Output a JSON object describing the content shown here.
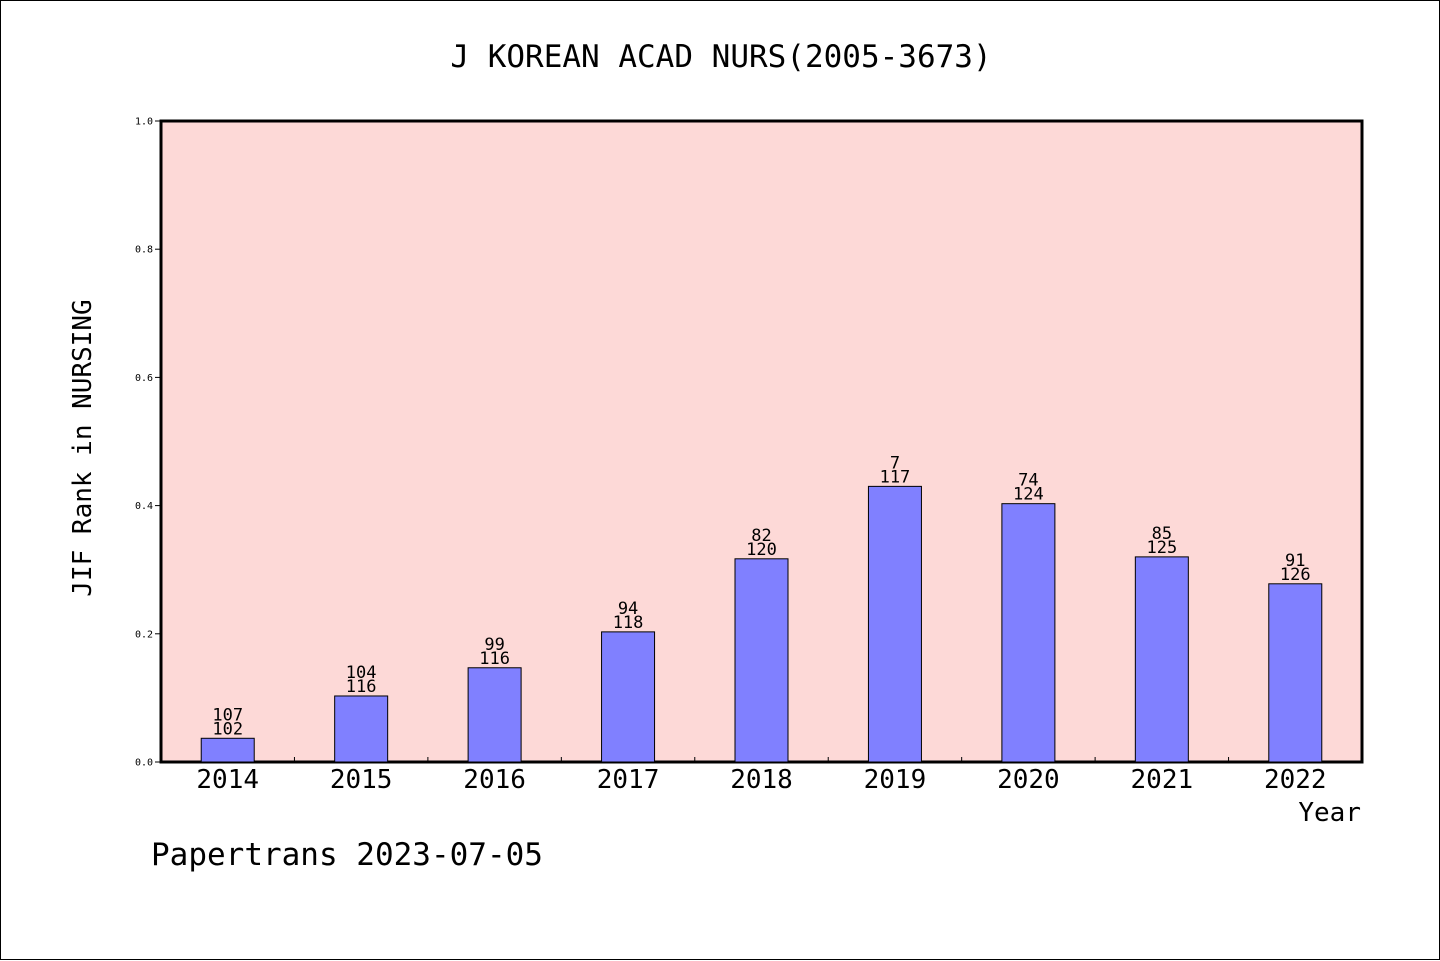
{
  "colors": {
    "plot_background": "#fdd9d7",
    "bar_fill": "#8080ff",
    "bar_stroke": "#000000",
    "axis": "#000000"
  },
  "footer": "Papertrans 2023-07-05",
  "chart_data": {
    "type": "bar",
    "title": "J KOREAN ACAD NURS(2005-3673)",
    "xlabel": "Year",
    "ylabel": "JIF Rank in NURSING",
    "categories": [
      "2014",
      "2015",
      "2016",
      "2017",
      "2018",
      "2019",
      "2020",
      "2021",
      "2022"
    ],
    "values": [
      0.037,
      0.103,
      0.147,
      0.203,
      0.317,
      0.43,
      0.403,
      0.32,
      0.278
    ],
    "rank": [
      "107",
      "104",
      "99",
      "94",
      "82",
      "7",
      "74",
      "85",
      "91"
    ],
    "total": [
      "102",
      "116",
      "116",
      "118",
      "120",
      "117",
      "124",
      "125",
      "126"
    ],
    "ylim": [
      0,
      1.0
    ],
    "yticks": [
      "0.0",
      "0.2",
      "0.4",
      "0.6",
      "0.8",
      "1.0"
    ],
    "grid": false,
    "legend": "none"
  }
}
